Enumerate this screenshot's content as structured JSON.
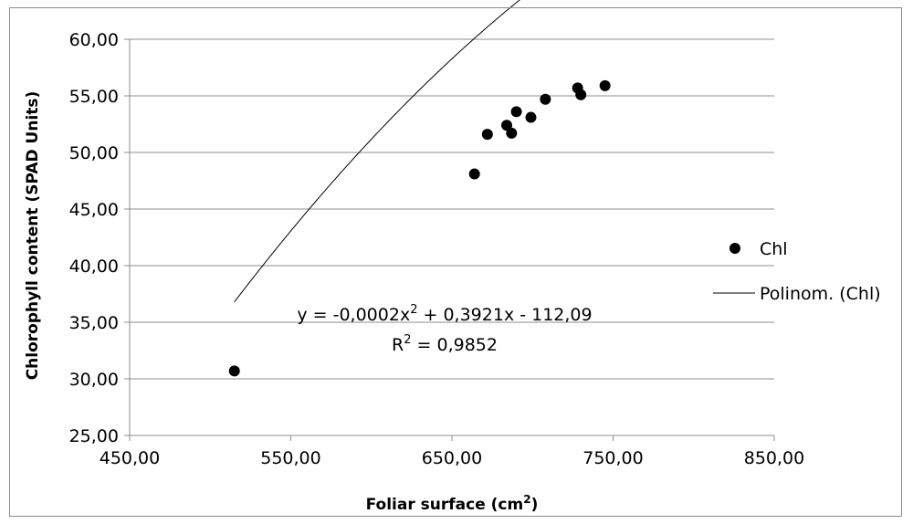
{
  "chart_data": {
    "type": "scatter",
    "title": "",
    "xlabel_main": "Foliar surface (cm",
    "xlabel_sup": "2",
    "xlabel_end": ")",
    "ylabel": "Chlorophyll content (SPAD Units)",
    "xlim": [
      450,
      850
    ],
    "ylim": [
      25,
      60
    ],
    "x_ticks": [
      450,
      550,
      650,
      750,
      850
    ],
    "x_tick_labels": [
      "450,00",
      "550,00",
      "650,00",
      "750,00",
      "850,00"
    ],
    "y_ticks": [
      25,
      30,
      35,
      40,
      45,
      50,
      55,
      60
    ],
    "y_tick_labels": [
      "25,00",
      "30,00",
      "35,00",
      "40,00",
      "45,00",
      "50,00",
      "55,00",
      "60,00"
    ],
    "grid": "horizontal",
    "legend_position": "right",
    "series": [
      {
        "name": "Chl",
        "marker": "circle",
        "color": "#000000",
        "points": [
          {
            "x": 515,
            "y": 30.7
          },
          {
            "x": 664,
            "y": 48.1
          },
          {
            "x": 672,
            "y": 51.6
          },
          {
            "x": 684,
            "y": 52.4
          },
          {
            "x": 687,
            "y": 51.7
          },
          {
            "x": 690,
            "y": 53.6
          },
          {
            "x": 699,
            "y": 53.1
          },
          {
            "x": 708,
            "y": 54.7
          },
          {
            "x": 728,
            "y": 55.7
          },
          {
            "x": 730,
            "y": 55.1
          },
          {
            "x": 745,
            "y": 55.9
          }
        ]
      },
      {
        "name": "Polinom. (Chl)",
        "kind": "trendline",
        "color": "#000000",
        "fit": {
          "a": -0.0002,
          "b": 0.3921,
          "c": -112.09
        },
        "x_range": [
          515,
          745
        ]
      }
    ],
    "annotation": {
      "eq_p1": "y = -0,0002x",
      "eq_sup": "2",
      "eq_p2": " + 0,3921x - 112,09",
      "r2_p1": "R",
      "r2_sup": "2",
      "r2_p2": " = 0,9852"
    }
  }
}
